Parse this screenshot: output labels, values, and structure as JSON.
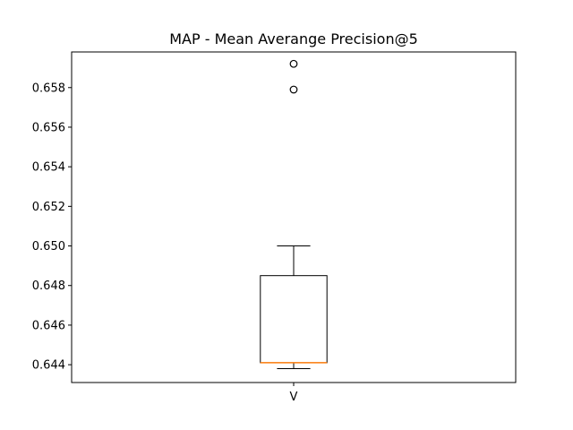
{
  "chart_data": {
    "type": "boxplot",
    "title": "MAP - Mean Averange Precision@5",
    "xlabel": "",
    "ylabel": "",
    "categories": [
      "V"
    ],
    "ylim": [
      0.6431,
      0.6598
    ],
    "yticks": [
      0.644,
      0.646,
      0.648,
      0.65,
      0.652,
      0.654,
      0.656,
      0.658
    ],
    "ytick_labels": [
      "0.644",
      "0.646",
      "0.648",
      "0.650",
      "0.652",
      "0.654",
      "0.656",
      "0.658"
    ],
    "grid": false,
    "boxes": [
      {
        "category": "V",
        "whisker_low": 0.6438,
        "q1": 0.6441,
        "median": 0.6441,
        "q3": 0.6485,
        "whisker_high": 0.65,
        "outliers": [
          0.6579,
          0.6592
        ]
      }
    ],
    "colors": {
      "box": "#000000",
      "median": "#ff7f0e",
      "outlier": "#000000"
    }
  }
}
